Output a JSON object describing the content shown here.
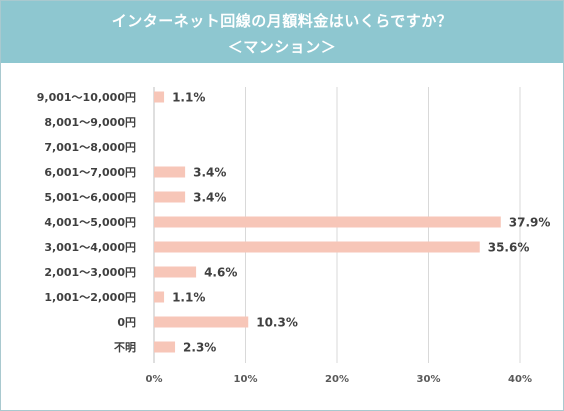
{
  "header": {
    "title_line1": "インターネット回線の月額料金はいくらですか？",
    "title_line2": "＜マンション＞"
  },
  "colors": {
    "header_bg": "#8ec7d0",
    "bar": "#f7c6b8",
    "grid": "#d9d9d9",
    "text": "#404040"
  },
  "chart_data": {
    "type": "bar",
    "orientation": "horizontal",
    "title": "インターネット回線の月額料金はいくらですか？＜マンション＞",
    "categories": [
      "9,001〜10,000円",
      "8,001〜9,000円",
      "7,001〜8,000円",
      "6,001〜7,000円",
      "5,001〜6,000円",
      "4,001〜5,000円",
      "3,001〜4,000円",
      "2,001〜3,000円",
      "1,001〜2,000円",
      "0円",
      "不明"
    ],
    "values": [
      1.1,
      null,
      null,
      3.4,
      3.4,
      37.9,
      35.6,
      4.6,
      1.1,
      10.3,
      2.3
    ],
    "value_labels": [
      "1.1%",
      "",
      "",
      "3.4%",
      "3.4%",
      "37.9%",
      "35.6%",
      "4.6%",
      "1.1%",
      "10.3%",
      "2.3%"
    ],
    "xlim": [
      0,
      40
    ],
    "x_ticks": [
      "0%",
      "10%",
      "20%",
      "30%",
      "40%"
    ],
    "grid": true,
    "legend": "none"
  }
}
